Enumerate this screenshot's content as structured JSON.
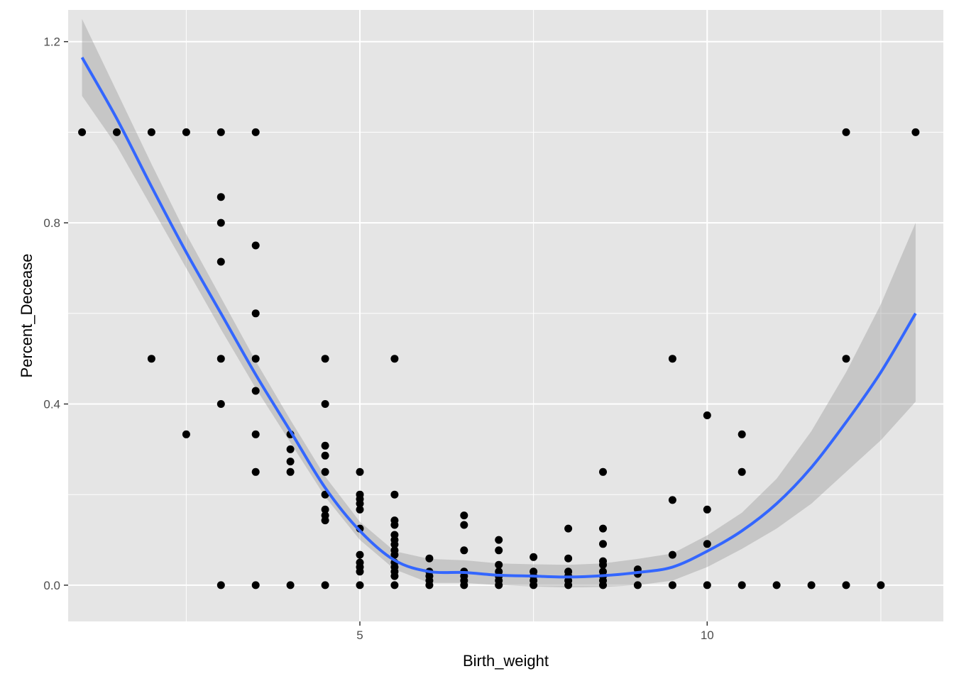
{
  "chart_data": {
    "type": "scatter",
    "xlabel": "Birth_weight",
    "ylabel": "Percent_Decease",
    "xlim": [
      0.8,
      13.4
    ],
    "ylim": [
      -0.08,
      1.27
    ],
    "x_ticks": [
      5,
      10
    ],
    "x_tick_labels": [
      "5",
      "10"
    ],
    "y_ticks": [
      0.0,
      0.4,
      0.8,
      1.2
    ],
    "y_tick_labels": [
      "0.0",
      "0.4",
      "0.8",
      "1.2"
    ],
    "grid": true,
    "colors": {
      "panel_background": "#e5e5e5",
      "grid": "#ffffff",
      "points": "#000000",
      "smooth_line": "#3366ff",
      "confidence_band": "#999999"
    },
    "points": [
      [
        1,
        1
      ],
      [
        1.5,
        1
      ],
      [
        2,
        1
      ],
      [
        2.5,
        1
      ],
      [
        3,
        1
      ],
      [
        3.5,
        1
      ],
      [
        12,
        1
      ],
      [
        13,
        1
      ],
      [
        3,
        0.857
      ],
      [
        3,
        0.8
      ],
      [
        3,
        0.714
      ],
      [
        3.5,
        0.75
      ],
      [
        3.5,
        0.6
      ],
      [
        2,
        0.5
      ],
      [
        3,
        0.5
      ],
      [
        3.5,
        0.5
      ],
      [
        4.5,
        0.5
      ],
      [
        5.5,
        0.5
      ],
      [
        9.5,
        0.5
      ],
      [
        12,
        0.5
      ],
      [
        3,
        0.4
      ],
      [
        4.5,
        0.4
      ],
      [
        3.5,
        0.429
      ],
      [
        2.5,
        0.333
      ],
      [
        3.5,
        0.333
      ],
      [
        4,
        0.333
      ],
      [
        10.5,
        0.333
      ],
      [
        10,
        0.375
      ],
      [
        4,
        0.3
      ],
      [
        4.5,
        0.308
      ],
      [
        4,
        0.273
      ],
      [
        4.5,
        0.286
      ],
      [
        3.5,
        0.25
      ],
      [
        4,
        0.25
      ],
      [
        4.5,
        0.25
      ],
      [
        5,
        0.25
      ],
      [
        8.5,
        0.25
      ],
      [
        10.5,
        0.25
      ],
      [
        4.5,
        0.2
      ],
      [
        5,
        0.2
      ],
      [
        5,
        0.19
      ],
      [
        5,
        0.18
      ],
      [
        5.5,
        0.2
      ],
      [
        9.5,
        0.188
      ],
      [
        4.5,
        0.167
      ],
      [
        5,
        0.167
      ],
      [
        10,
        0.167
      ],
      [
        4.5,
        0.154
      ],
      [
        4.5,
        0.143
      ],
      [
        5.5,
        0.143
      ],
      [
        5.5,
        0.133
      ],
      [
        6.5,
        0.154
      ],
      [
        6.5,
        0.133
      ],
      [
        5,
        0.125
      ],
      [
        8,
        0.125
      ],
      [
        8.5,
        0.125
      ],
      [
        5.5,
        0.111
      ],
      [
        5.5,
        0.1
      ],
      [
        7,
        0.1
      ],
      [
        5.5,
        0.09
      ],
      [
        8.5,
        0.091
      ],
      [
        10,
        0.091
      ],
      [
        6.5,
        0.077
      ],
      [
        7,
        0.077
      ],
      [
        5.5,
        0.077
      ],
      [
        5,
        0.067
      ],
      [
        5.5,
        0.067
      ],
      [
        9.5,
        0.067
      ],
      [
        6,
        0.059
      ],
      [
        7.5,
        0.062
      ],
      [
        8,
        0.059
      ],
      [
        5,
        0.05
      ],
      [
        5,
        0.04
      ],
      [
        5.5,
        0.05
      ],
      [
        7,
        0.045
      ],
      [
        8.5,
        0.053
      ],
      [
        8.5,
        0.045
      ],
      [
        5,
        0.03
      ],
      [
        5.5,
        0.04
      ],
      [
        5.5,
        0.03
      ],
      [
        6,
        0.03
      ],
      [
        6.5,
        0.03
      ],
      [
        7,
        0.03
      ],
      [
        7.5,
        0.03
      ],
      [
        8,
        0.03
      ],
      [
        8.5,
        0.03
      ],
      [
        9,
        0.035
      ],
      [
        6,
        0.02
      ],
      [
        6.5,
        0.02
      ],
      [
        7,
        0.02
      ],
      [
        7.5,
        0.02
      ],
      [
        8,
        0.02
      ],
      [
        8.5,
        0.02
      ],
      [
        9,
        0.025
      ],
      [
        5.5,
        0.02
      ],
      [
        6,
        0.01
      ],
      [
        6.5,
        0.01
      ],
      [
        7,
        0.01
      ],
      [
        7.5,
        0.01
      ],
      [
        8,
        0.01
      ],
      [
        8.5,
        0.01
      ],
      [
        3,
        0
      ],
      [
        3.5,
        0
      ],
      [
        4,
        0
      ],
      [
        4.5,
        0
      ],
      [
        5,
        0
      ],
      [
        5.5,
        0
      ],
      [
        6,
        0
      ],
      [
        6.5,
        0
      ],
      [
        7,
        0
      ],
      [
        7.5,
        0
      ],
      [
        8,
        0
      ],
      [
        8.5,
        0
      ],
      [
        9,
        0
      ],
      [
        9.5,
        0
      ],
      [
        10,
        0
      ],
      [
        10.5,
        0
      ],
      [
        11,
        0
      ],
      [
        11.5,
        0
      ],
      [
        12,
        0
      ],
      [
        12.5,
        0
      ]
    ],
    "smooth": {
      "method": "loess",
      "x": [
        1.0,
        1.5,
        2.0,
        2.5,
        3.0,
        3.5,
        4.0,
        4.5,
        5.0,
        5.5,
        6.0,
        6.5,
        7.0,
        7.5,
        8.0,
        8.5,
        9.0,
        9.5,
        10.0,
        10.5,
        11.0,
        11.5,
        12.0,
        12.5,
        13.0
      ],
      "y": [
        1.165,
        1.03,
        0.88,
        0.735,
        0.6,
        0.465,
        0.34,
        0.215,
        0.12,
        0.055,
        0.03,
        0.028,
        0.022,
        0.02,
        0.018,
        0.021,
        0.028,
        0.04,
        0.075,
        0.12,
        0.18,
        0.26,
        0.36,
        0.47,
        0.6
      ],
      "lower": [
        1.08,
        0.97,
        0.835,
        0.7,
        0.565,
        0.435,
        0.315,
        0.195,
        0.1,
        0.035,
        0.005,
        0.005,
        0.0,
        -0.003,
        -0.005,
        -0.004,
        0.0,
        0.01,
        0.04,
        0.08,
        0.125,
        0.18,
        0.25,
        0.32,
        0.405
      ],
      "upper": [
        1.25,
        1.09,
        0.93,
        0.775,
        0.635,
        0.495,
        0.365,
        0.24,
        0.14,
        0.075,
        0.058,
        0.055,
        0.048,
        0.046,
        0.045,
        0.048,
        0.058,
        0.07,
        0.11,
        0.16,
        0.235,
        0.34,
        0.47,
        0.62,
        0.8
      ]
    }
  }
}
